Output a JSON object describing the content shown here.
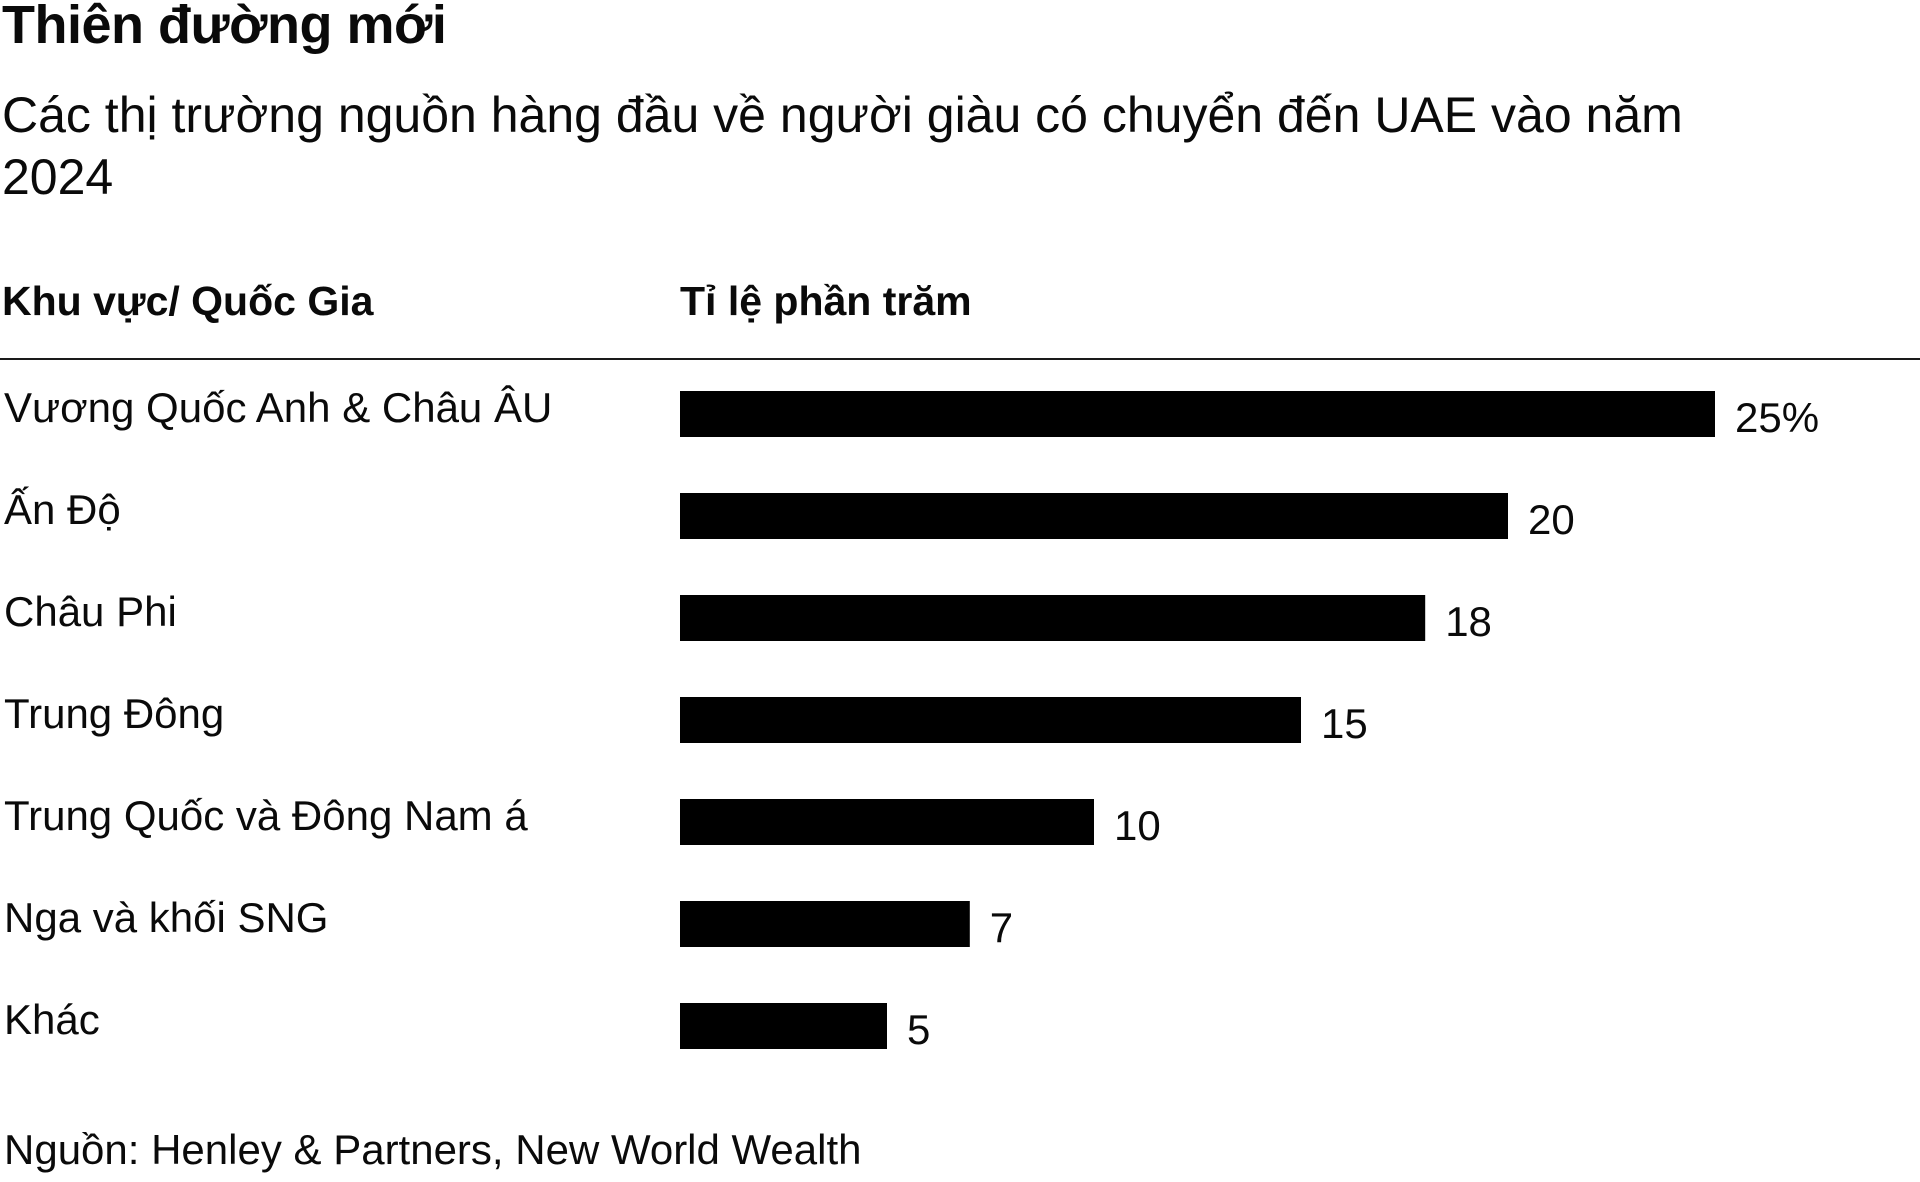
{
  "title": "Thiên đường mới",
  "subtitle": "Các thị trường nguồn hàng đầu về người giàu có chuyển đến UAE vào năm 2024",
  "columns": {
    "region": "Khu vực/ Quốc Gia",
    "percent": "Tỉ lệ phần trăm"
  },
  "source": "Nguồn: Henley & Partners, New World Wealth",
  "chart_data": {
    "type": "bar",
    "orientation": "horizontal",
    "title": "Thiên đường mới",
    "subtitle": "Các thị trường nguồn hàng đầu về người giàu có chuyển đến UAE vào năm 2024",
    "categories": [
      "Vương Quốc Anh & Châu ÂU",
      "Ấn Độ",
      "Châu Phi",
      "Trung Đông",
      "Trung Quốc và Đông Nam á",
      "Nga và khối SNG",
      "Khác"
    ],
    "values": [
      25,
      20,
      18,
      15,
      10,
      7,
      5
    ],
    "value_labels": [
      "25%",
      "20",
      "18",
      "15",
      "10",
      "7",
      "5"
    ],
    "xlim": [
      0,
      25
    ],
    "bar_color": "#000000",
    "grid": false,
    "legend": "none"
  }
}
